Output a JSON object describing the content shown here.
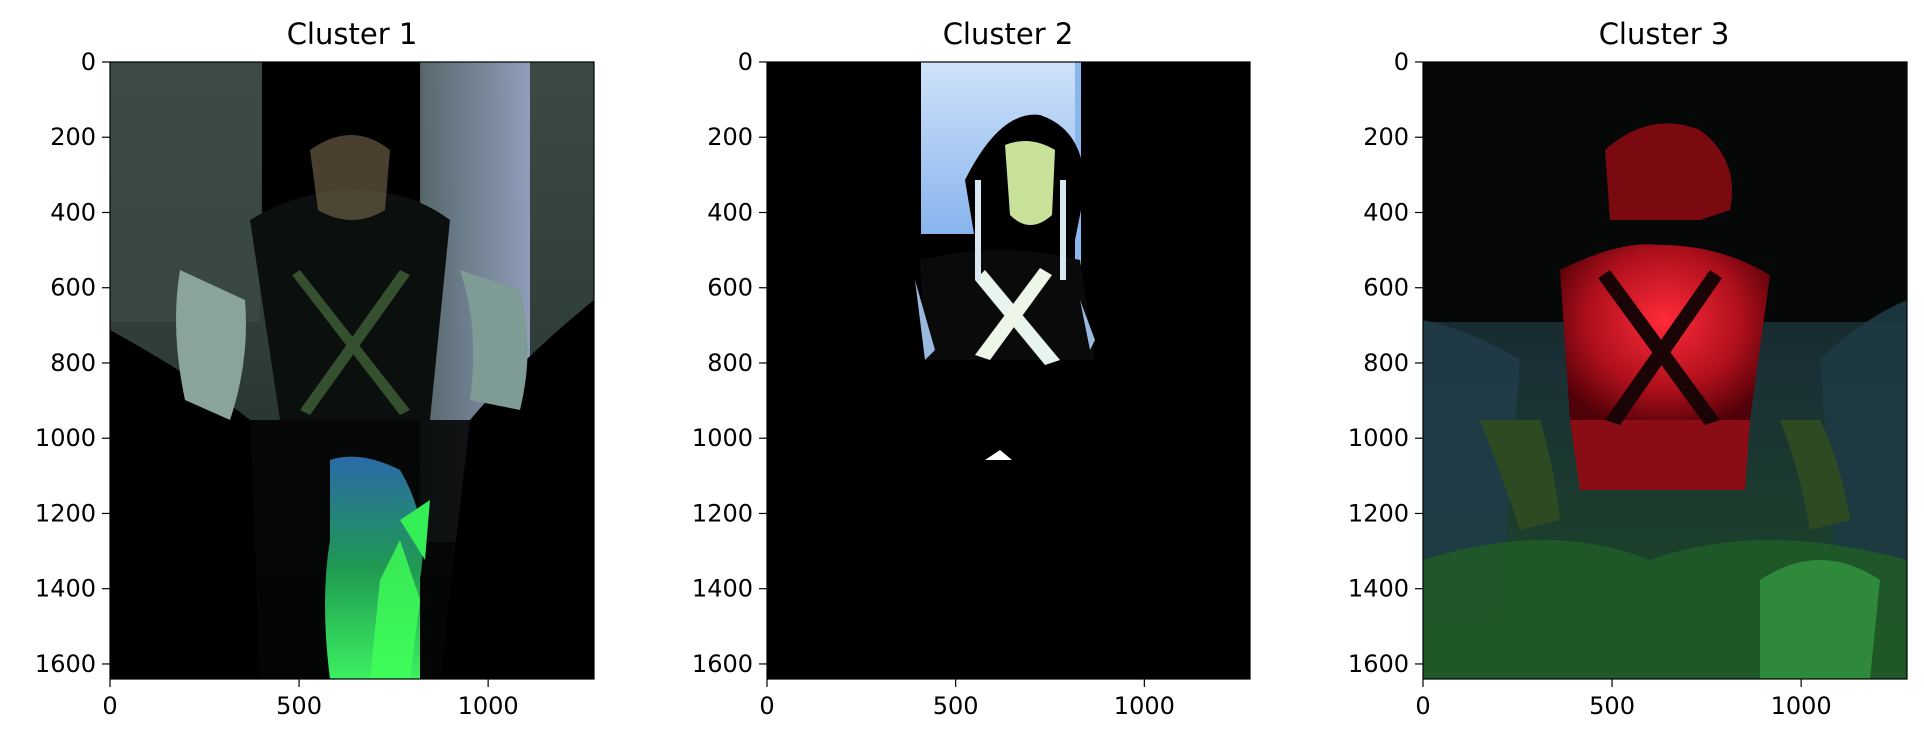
{
  "chart_data": [
    {
      "type": "image",
      "title": "Cluster 1",
      "xlim": [
        0,
        1280
      ],
      "ylim": [
        1640,
        0
      ],
      "xticks": [
        0,
        500,
        1000
      ],
      "yticks": [
        0,
        200,
        400,
        600,
        800,
        1000,
        1200,
        1400,
        1600
      ],
      "xlabel": "",
      "ylabel": "",
      "grid": false
    },
    {
      "type": "image",
      "title": "Cluster 2",
      "xlim": [
        0,
        1280
      ],
      "ylim": [
        1640,
        0
      ],
      "xticks": [
        0,
        500,
        1000
      ],
      "yticks": [
        0,
        200,
        400,
        600,
        800,
        1000,
        1200,
        1400,
        1600
      ],
      "xlabel": "",
      "ylabel": "",
      "grid": false
    },
    {
      "type": "image",
      "title": "Cluster 3",
      "xlim": [
        0,
        1280
      ],
      "ylim": [
        1640,
        0
      ],
      "xticks": [
        0,
        500,
        1000
      ],
      "yticks": [
        0,
        200,
        400,
        600,
        800,
        1000,
        1200,
        1400,
        1600
      ],
      "xlabel": "",
      "ylabel": "",
      "grid": false
    }
  ]
}
